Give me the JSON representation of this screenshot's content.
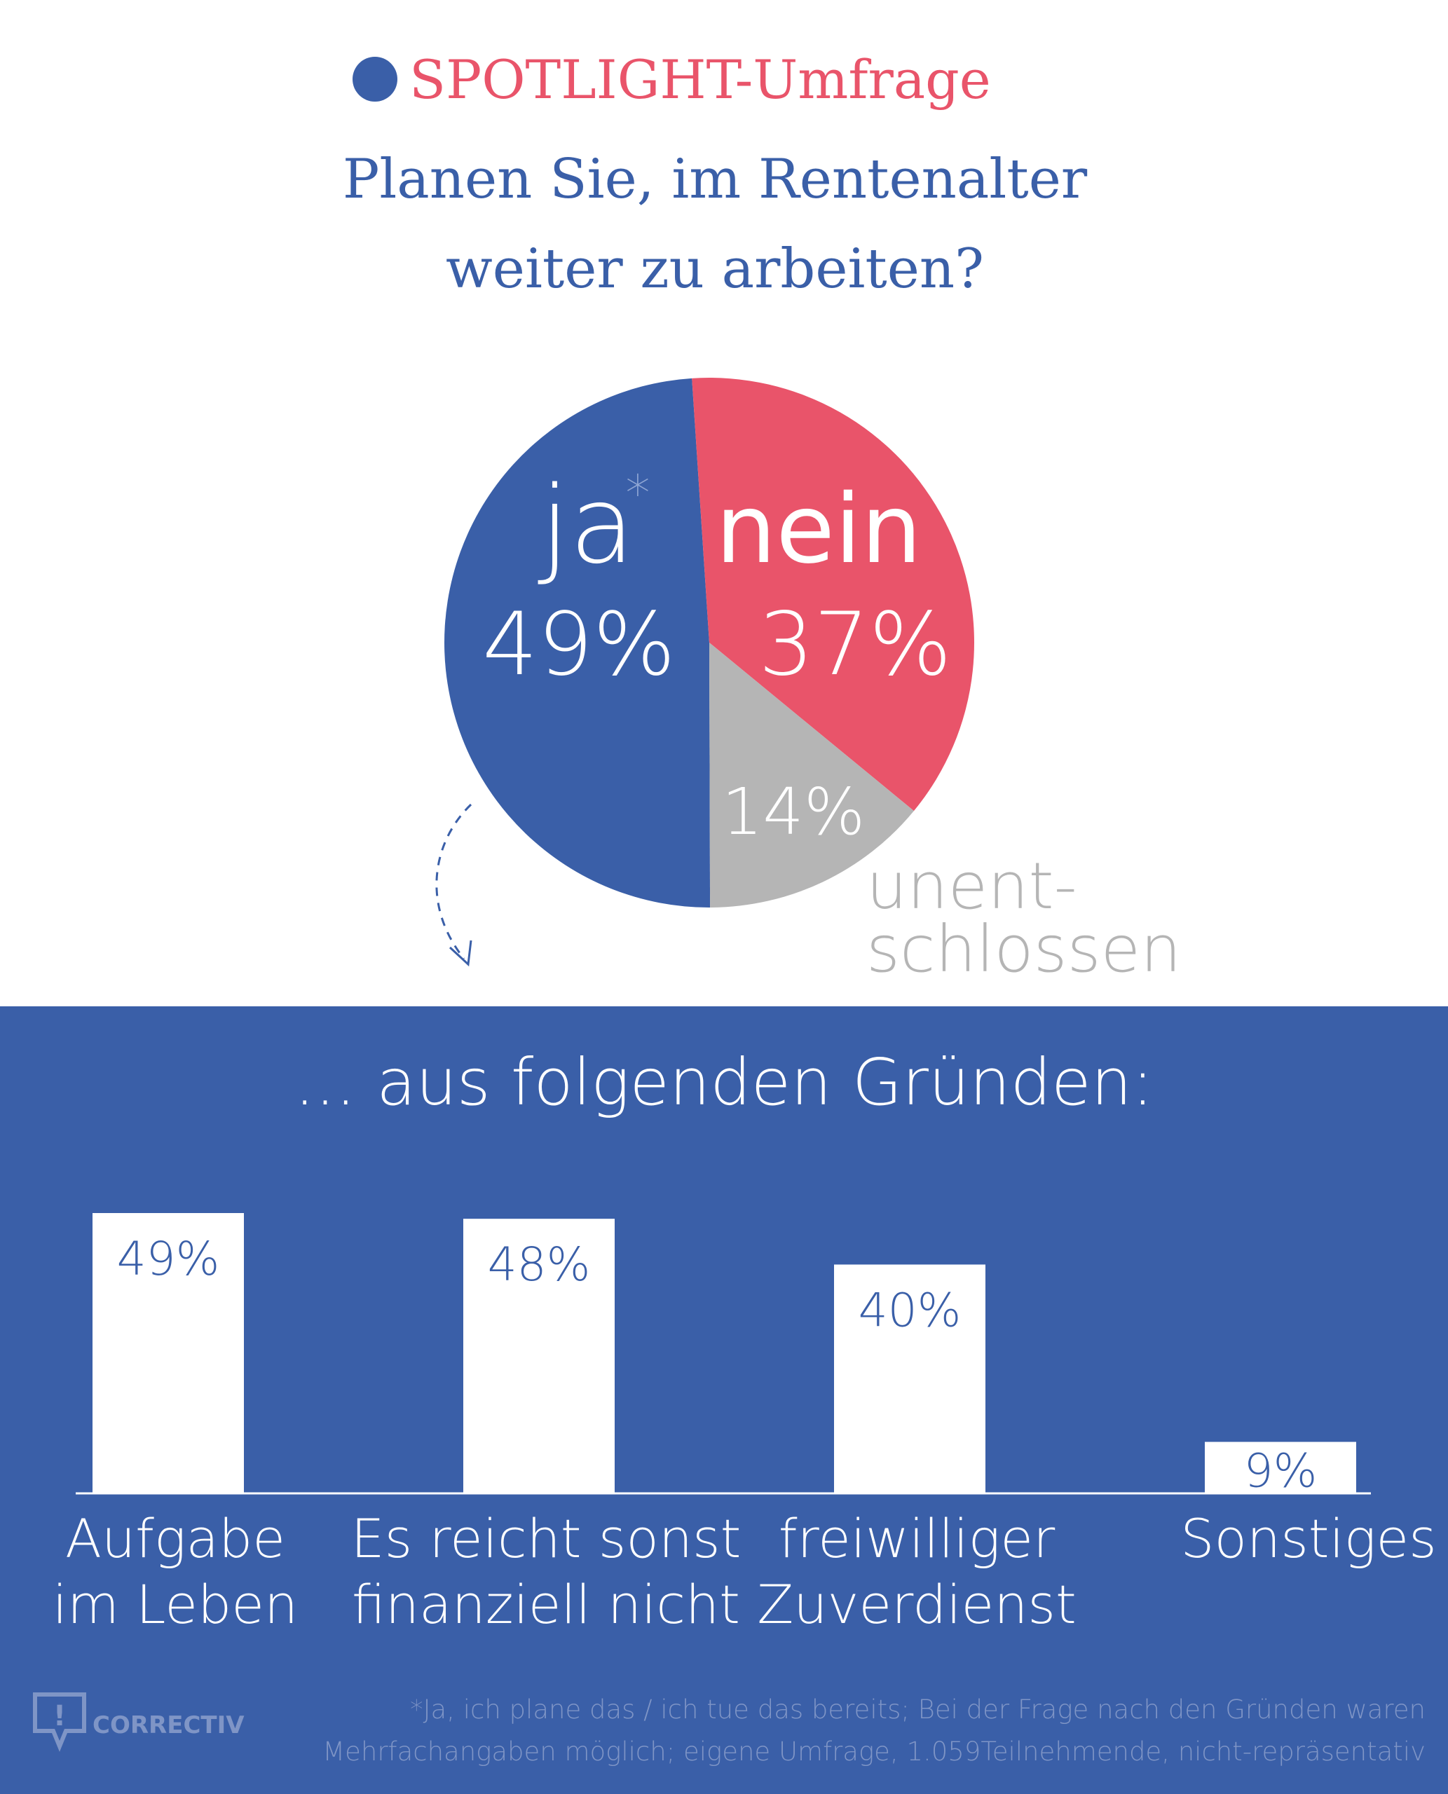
{
  "header": {
    "kicker": "SPOTLIGHT-Umfrage",
    "question_line1": "Planen Sie, im Rentenalter",
    "question_line2": "weiter zu arbeiten?"
  },
  "colors": {
    "blue": "#3a5fa8",
    "red": "#e9546a",
    "gray": "#b5b5b5",
    "white": "#ffffff",
    "footnote": "#7f95c6"
  },
  "chart_data": [
    {
      "type": "pie",
      "slices": [
        {
          "label": "ja",
          "value": 49,
          "value_label": "49%",
          "color": "#3a5fa8",
          "marker": "*"
        },
        {
          "label": "nein",
          "value": 37,
          "value_label": "37%",
          "color": "#e9546a"
        },
        {
          "label": "unent-schlossen",
          "label_lines": [
            "unent-",
            "schlossen"
          ],
          "value": 14,
          "value_label": "14%",
          "color": "#b5b5b5"
        }
      ]
    },
    {
      "type": "bar",
      "title": "... aus folgenden Gründen:",
      "categories": [
        [
          "Aufgabe",
          "im Leben"
        ],
        [
          "Es reicht sonst",
          "finanziell nicht"
        ],
        [
          "freiwilliger",
          "Zuverdienst"
        ],
        [
          "Sonstiges"
        ]
      ],
      "values": [
        49,
        48,
        40,
        9
      ],
      "value_labels": [
        "49%",
        "48%",
        "40%",
        "9%"
      ],
      "ylim": [
        0,
        49
      ]
    }
  ],
  "footnote": {
    "line1": "*Ja, ich plane das / ich tue das bereits; Bei der Frage nach den Gründen waren",
    "line2": "Mehrfachangaben möglich; eigene Umfrage, 1.059Teilnehmende, nicht-repräsentativ"
  },
  "logo": {
    "text": "CORRECTIV"
  }
}
